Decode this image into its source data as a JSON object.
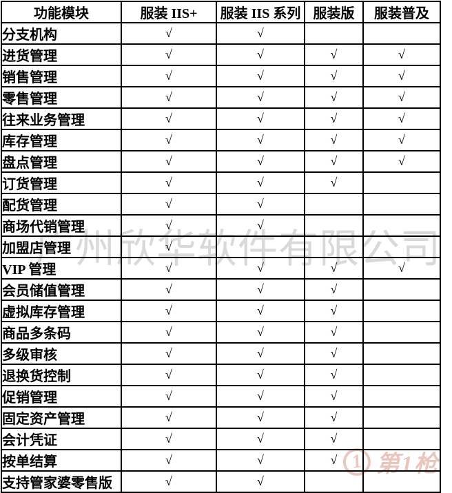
{
  "table": {
    "headers": [
      "功能模块",
      "服装 IIS+",
      "服装 IIS 系列",
      "服装版",
      "服装普及"
    ],
    "check_glyph": "√",
    "rows": [
      {
        "module": "分支机构",
        "checks": [
          true,
          true,
          false,
          false
        ]
      },
      {
        "module": "进货管理",
        "checks": [
          true,
          true,
          true,
          true
        ]
      },
      {
        "module": "销售管理",
        "checks": [
          true,
          true,
          true,
          true
        ]
      },
      {
        "module": "零售管理",
        "checks": [
          true,
          true,
          true,
          true
        ]
      },
      {
        "module": "往来业务管理",
        "checks": [
          true,
          true,
          true,
          true
        ]
      },
      {
        "module": "库存管理",
        "checks": [
          true,
          true,
          true,
          true
        ]
      },
      {
        "module": "盘点管理",
        "checks": [
          true,
          true,
          true,
          true
        ]
      },
      {
        "module": "订货管理",
        "checks": [
          true,
          true,
          true,
          false
        ]
      },
      {
        "module": "配货管理",
        "checks": [
          true,
          true,
          false,
          false
        ]
      },
      {
        "module": "商场代销管理",
        "checks": [
          true,
          true,
          false,
          false
        ]
      },
      {
        "module": "加盟店管理",
        "checks": [
          true,
          false,
          false,
          false
        ]
      },
      {
        "module": "VIP 管理",
        "checks": [
          true,
          true,
          true,
          true
        ]
      },
      {
        "module": "会员储值管理",
        "checks": [
          true,
          true,
          true,
          false
        ]
      },
      {
        "module": "虚拟库存管理",
        "checks": [
          true,
          true,
          true,
          false
        ]
      },
      {
        "module": "商品多条码",
        "checks": [
          true,
          true,
          true,
          false
        ]
      },
      {
        "module": "多级审核",
        "checks": [
          true,
          true,
          true,
          false
        ]
      },
      {
        "module": "退换货控制",
        "checks": [
          true,
          true,
          true,
          false
        ]
      },
      {
        "module": "促销管理",
        "checks": [
          true,
          true,
          true,
          false
        ]
      },
      {
        "module": "固定资产管理",
        "checks": [
          true,
          true,
          true,
          false
        ]
      },
      {
        "module": "会计凭证",
        "checks": [
          true,
          true,
          true,
          false
        ]
      },
      {
        "module": "按单结算",
        "checks": [
          true,
          true,
          true,
          false
        ]
      },
      {
        "module": "支持管家婆零售版",
        "checks": [
          true,
          true,
          false,
          false
        ]
      }
    ]
  },
  "watermarks": {
    "company_text": "广州欣华软件有限公司",
    "company_color": "#d9d9d9",
    "logo_badge": "1",
    "logo_text": "第1枪",
    "logo_color": "#e9c6bd"
  }
}
